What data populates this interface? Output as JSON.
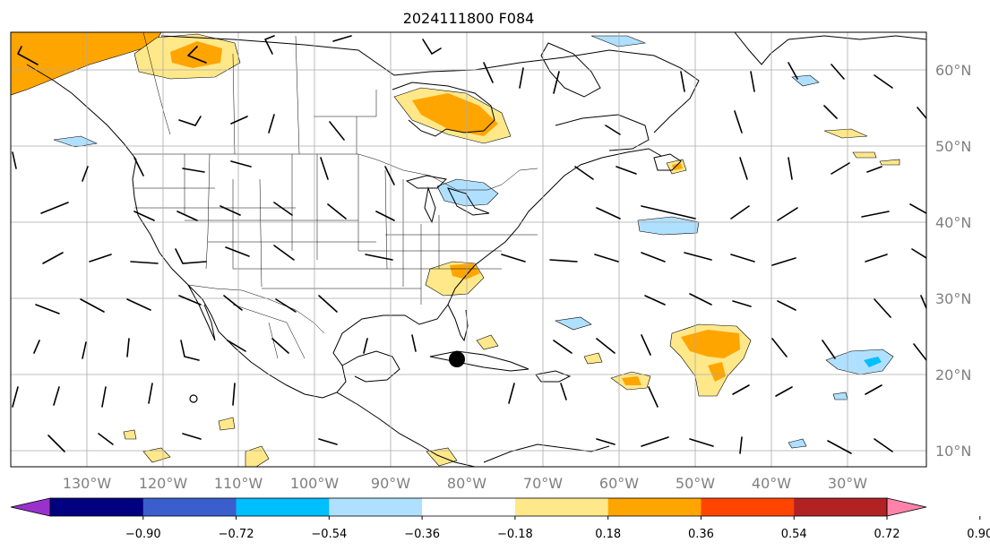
{
  "title": "2024111800 F084",
  "lon_ticks": [
    "130°W",
    "120°W",
    "110°W",
    "100°W",
    "90°W",
    "80°W",
    "70°W",
    "60°W",
    "50°W",
    "40°W",
    "30°W"
  ],
  "lat_ticks": [
    "60°N",
    "50°N",
    "40°N",
    "30°N",
    "20°N",
    "10°N"
  ],
  "colorbar": {
    "labels": [
      "−0.90",
      "−0.72",
      "−0.54",
      "−0.36",
      "−0.18",
      "0.18",
      "0.36",
      "0.54",
      "0.72",
      "0.90"
    ],
    "colors": [
      "#9932cc",
      "#000080",
      "#3a5fcd",
      "#00bfff",
      "#b0e0ff",
      "#ffffff",
      "#ffe88a",
      "#ffa500",
      "#ff4500",
      "#b22222",
      "#ff82ab"
    ]
  },
  "map": {
    "projection": "equirectangular",
    "lon_range": [
      -137.5,
      -16
    ],
    "lat_range": [
      8,
      65
    ],
    "gridlines": true,
    "storm_marker": {
      "lon": -81,
      "lat": 22
    }
  },
  "chart_data": {
    "type": "heatmap",
    "title": "2024111800 F084",
    "shaded_anomalies": [
      {
        "lon": -132,
        "lat": 61,
        "value": 0.5
      },
      {
        "lon": -117,
        "lat": 61,
        "value": 0.4
      },
      {
        "lon": -80,
        "lat": 53,
        "value": 0.5
      },
      {
        "lon": -81,
        "lat": 32,
        "value": 0.35
      },
      {
        "lon": -79,
        "lat": 34,
        "value": 0.55
      },
      {
        "lon": -50,
        "lat": 24,
        "value": 0.55
      },
      {
        "lon": -48,
        "lat": 21,
        "value": 0.4
      },
      {
        "lon": -63,
        "lat": 19,
        "value": 0.4
      },
      {
        "lon": -82,
        "lat": 41,
        "value": -0.3
      },
      {
        "lon": -35,
        "lat": 21,
        "value": -0.45
      },
      {
        "lon": -60,
        "lat": 40,
        "value": -0.25
      },
      {
        "lon": -128,
        "lat": 50.5,
        "value": -0.25
      }
    ],
    "barb_grid": {
      "lon_step": 10,
      "lat_step": 6
    }
  }
}
